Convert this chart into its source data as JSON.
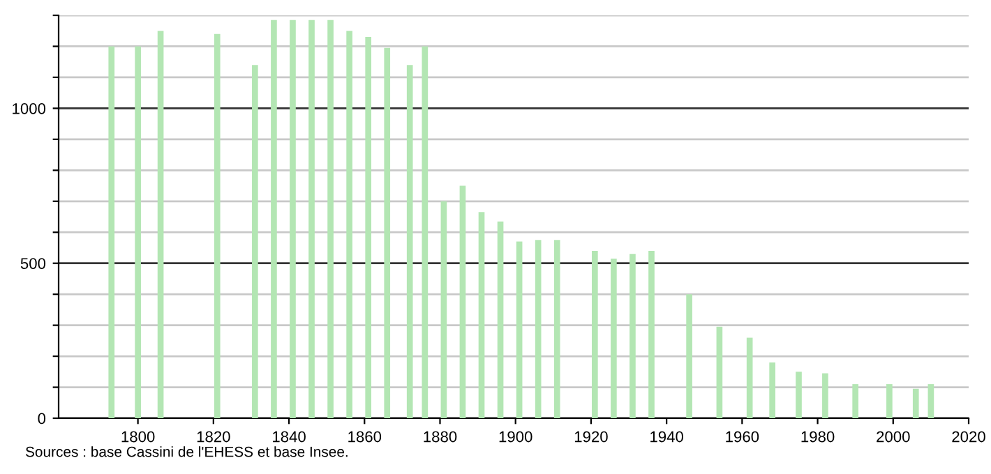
{
  "chart_data": {
    "type": "bar",
    "x": [
      1793,
      1800,
      1806,
      1821,
      1831,
      1836,
      1841,
      1846,
      1851,
      1856,
      1861,
      1866,
      1872,
      1876,
      1881,
      1886,
      1891,
      1896,
      1901,
      1906,
      1911,
      1921,
      1926,
      1931,
      1936,
      1946,
      1954,
      1962,
      1968,
      1975,
      1982,
      1990,
      1999,
      2006,
      2010
    ],
    "values": [
      1200,
      1200,
      1250,
      1240,
      1140,
      1285,
      1285,
      1285,
      1285,
      1250,
      1230,
      1195,
      1140,
      1200,
      700,
      750,
      665,
      635,
      570,
      575,
      575,
      540,
      515,
      530,
      540,
      400,
      295,
      260,
      180,
      150,
      145,
      110,
      110,
      95,
      110
    ],
    "color": "#b3e6b3",
    "xlim": [
      1779,
      2020
    ],
    "xticks": [
      1800,
      1820,
      1840,
      1860,
      1880,
      1900,
      1920,
      1940,
      1960,
      1980,
      2000,
      2020
    ],
    "ylim": [
      0,
      1300
    ],
    "yticks": [
      0,
      {
        "value": 100,
        "label": null
      },
      {
        "value": 200,
        "label": null
      },
      {
        "value": 300,
        "label": null
      },
      {
        "value": 400,
        "label": null
      },
      500,
      {
        "value": 600,
        "label": null
      },
      {
        "value": 700,
        "label": null
      },
      {
        "value": 800,
        "label": null
      },
      {
        "value": 900,
        "label": null
      },
      1000,
      {
        "value": 1100,
        "label": null
      },
      {
        "value": 1200,
        "label": null
      },
      {
        "value": 1300,
        "label": null
      }
    ],
    "grid": "y",
    "legend": false,
    "annotations": [
      "Sources : base Cassini de l'EHESS et base Insee."
    ]
  }
}
